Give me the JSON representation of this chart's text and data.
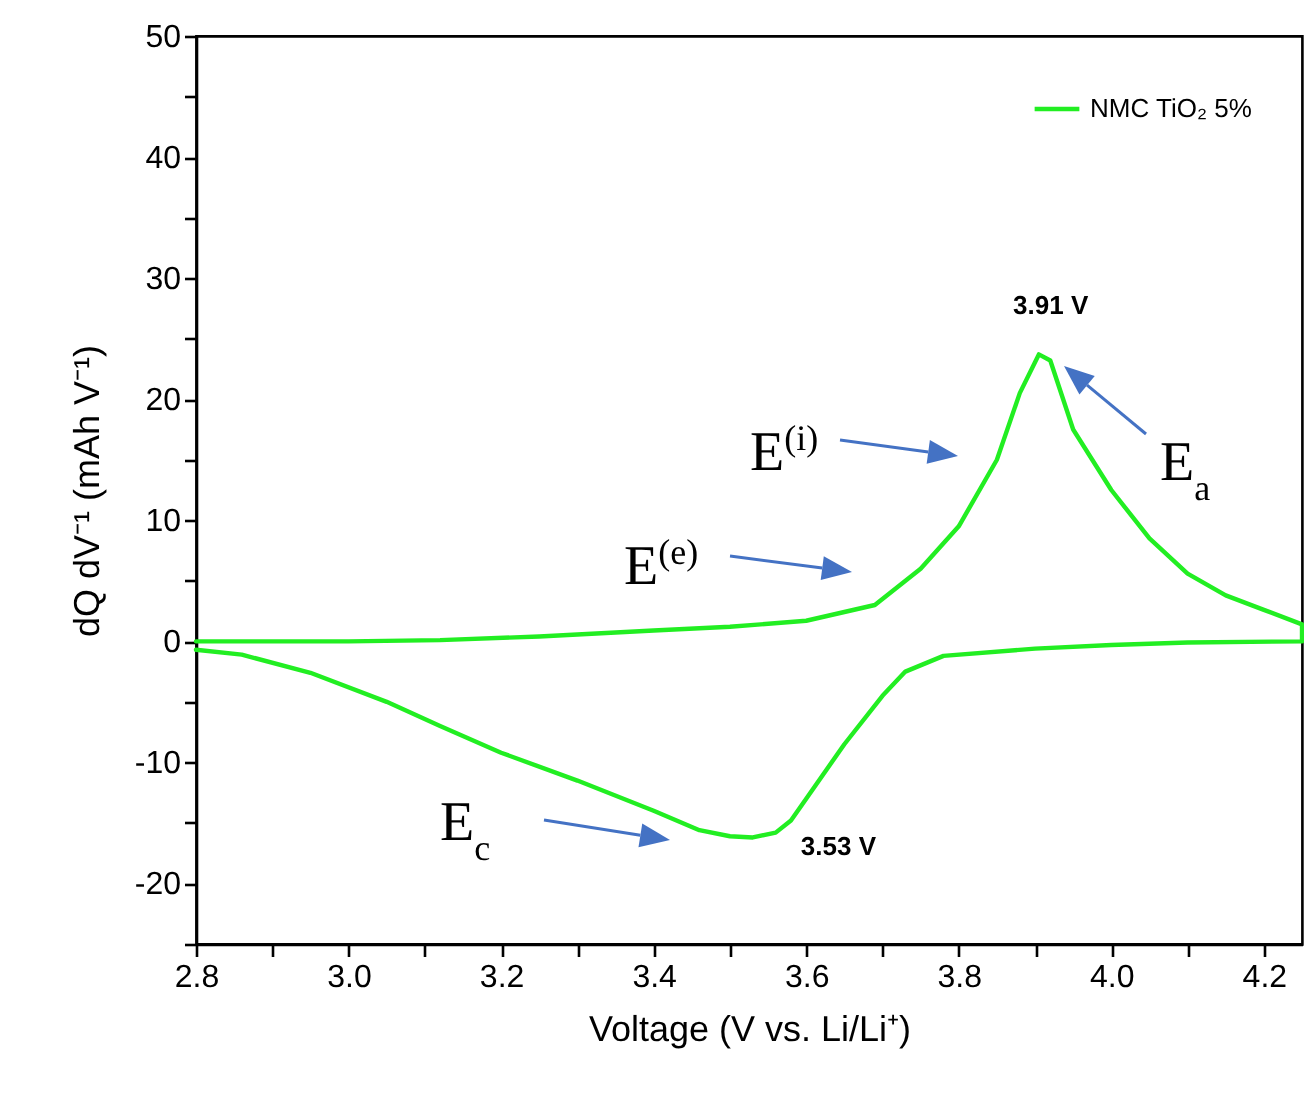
{
  "chart_data": {
    "type": "line",
    "xlabel": "Voltage (V vs. Li/Li⁺)",
    "ylabel": "dQ dV⁻¹ (mAh V⁻¹)",
    "xlim": [
      2.8,
      4.25
    ],
    "ylim": [
      -25,
      50
    ],
    "xticks": [
      2.8,
      {
        "value": 2.9,
        "label": null
      },
      {
        "value": 3,
        "label": "3.0"
      },
      {
        "value": 3.1,
        "label": null
      },
      3.2,
      {
        "value": 3.3,
        "label": null
      },
      3.4,
      {
        "value": 3.5,
        "label": null
      },
      3.6,
      {
        "value": 3.7,
        "label": null
      },
      3.8,
      {
        "value": 3.9,
        "label": null
      },
      {
        "value": 4,
        "label": "4.0"
      },
      {
        "value": 4.1,
        "label": null
      },
      4.2
    ],
    "yticks": [
      {
        "value": -25,
        "label": null
      },
      -20,
      {
        "value": -15,
        "label": null
      },
      -10,
      {
        "value": -5,
        "label": null
      },
      0,
      {
        "value": 5,
        "label": null
      },
      10,
      {
        "value": 15,
        "label": null
      },
      20,
      {
        "value": 25,
        "label": null
      },
      30,
      {
        "value": 35,
        "label": null
      },
      40,
      {
        "value": 45,
        "label": null
      },
      50
    ],
    "grid": false,
    "legend": "top right",
    "line_style": "solid",
    "marker": "none",
    "series": [
      {
        "name": "NMC TiO₂ 5%",
        "color": "#22ee22",
        "x": [
          2.8,
          3.0,
          3.12,
          3.25,
          3.4,
          3.5,
          3.6,
          3.69,
          3.75,
          3.8,
          3.85,
          3.88,
          3.905,
          3.92,
          3.95,
          4.0,
          4.05,
          4.1,
          4.15,
          4.2,
          4.25,
          4.25,
          4.1,
          4.0,
          3.9,
          3.78,
          3.73,
          3.7,
          3.65,
          3.6,
          3.58,
          3.56,
          3.53,
          3.5,
          3.46,
          3.4,
          3.3,
          3.2,
          3.12,
          3.05,
          2.95,
          2.86,
          2.8
        ],
        "values": [
          0,
          0,
          0.1,
          0.4,
          0.9,
          1.2,
          1.7,
          3.0,
          6.0,
          9.5,
          15,
          20.5,
          23.7,
          23.2,
          17.5,
          12.5,
          8.5,
          5.6,
          3.8,
          2.6,
          1.4,
          0,
          -0.1,
          -0.3,
          -0.6,
          -1.2,
          -2.5,
          -4.5,
          -8.5,
          -13,
          -14.8,
          -15.8,
          -16.2,
          -16.1,
          -15.6,
          -14,
          -11.5,
          -9.2,
          -7,
          -5,
          -2.6,
          -1.1,
          -0.7
        ]
      }
    ],
    "annotations": [
      {
        "text": "3.91 V",
        "x": 3.91,
        "y": 23.7
      },
      "E$^{(i)}$",
      "E$^{(e)}$",
      "E$_{a}$",
      "E$_{c}$",
      {
        "text": "3.53 V",
        "x": 3.53,
        "y": -16.2
      }
    ]
  }
}
